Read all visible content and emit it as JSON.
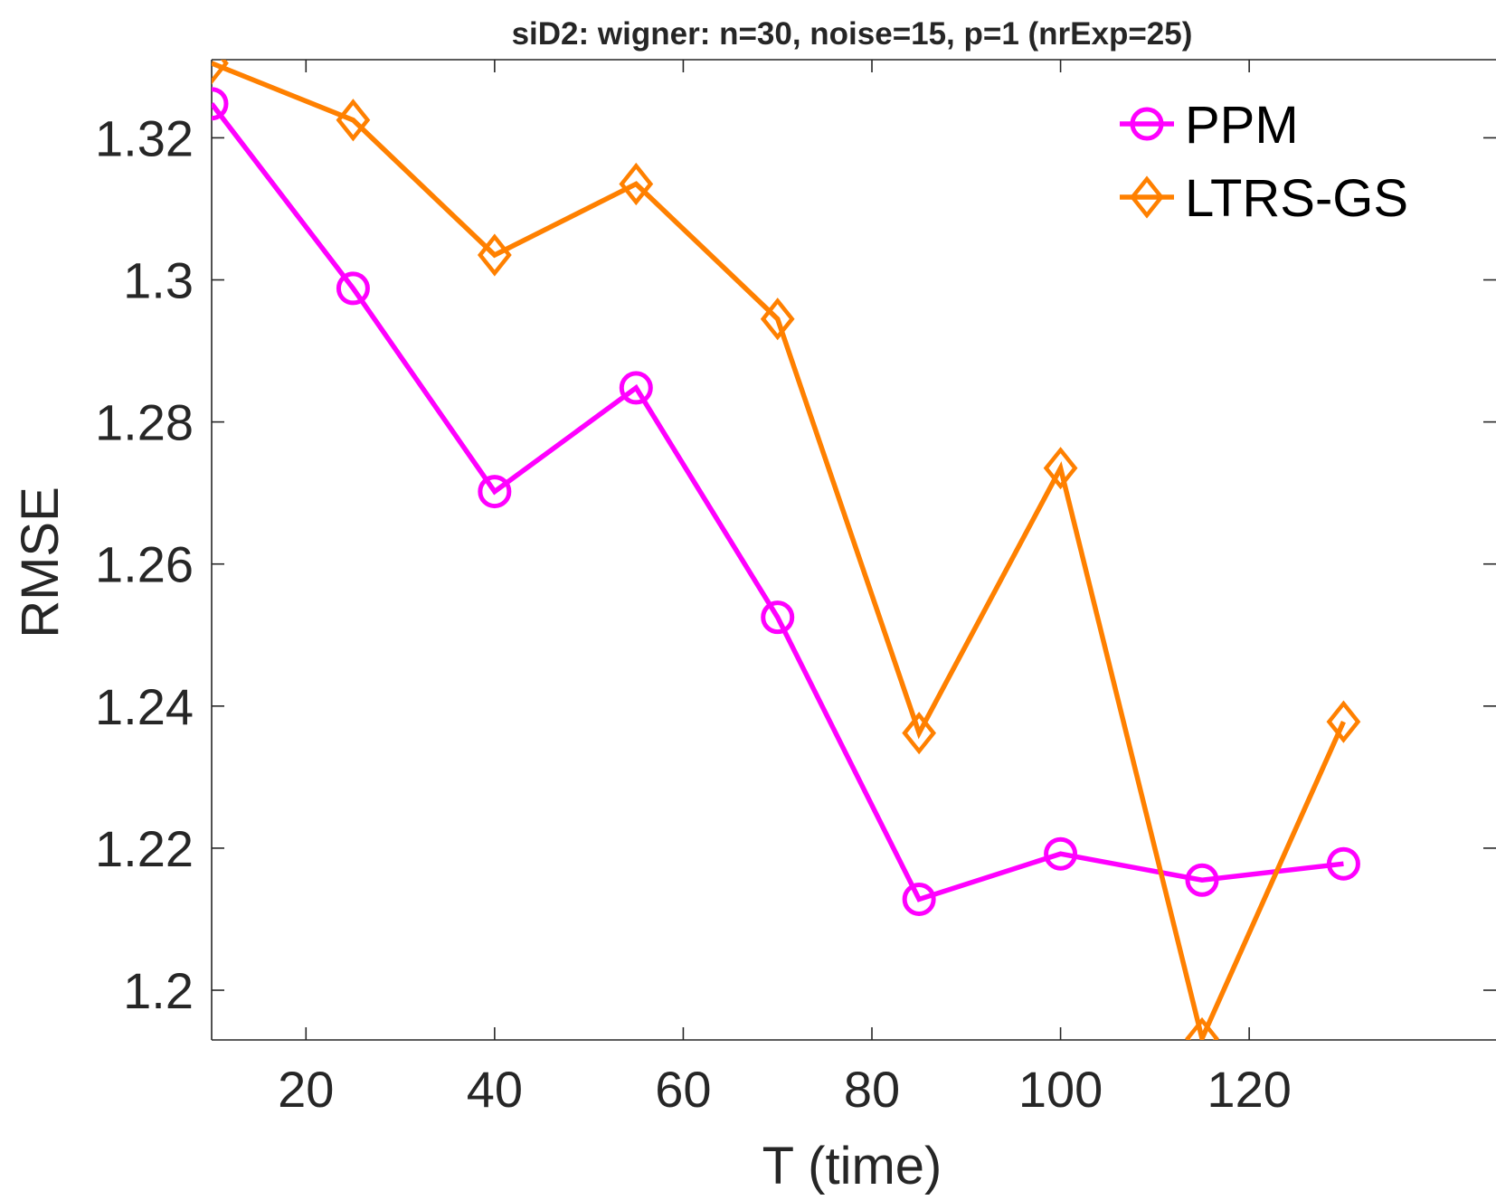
{
  "chart_data": {
    "type": "line",
    "title": "siD2: wigner: n=30, noise=15, p=1 (nrExp=25)",
    "xlabel": "T (time)",
    "ylabel": "RMSE",
    "xlim": [
      10,
      150
    ],
    "ylim": [
      1.193,
      1.331
    ],
    "xticks": [
      20,
      40,
      60,
      80,
      100,
      120
    ],
    "xtick_labels": [
      "20",
      "40",
      "60",
      "80",
      "100",
      "120"
    ],
    "yticks": [
      1.2,
      1.22,
      1.24,
      1.26,
      1.28,
      1.3,
      1.32
    ],
    "ytick_labels": [
      "1.2",
      "1.22",
      "1.24",
      "1.26",
      "1.28",
      "1.3",
      "1.32"
    ],
    "grid": false,
    "legend_position": "top-right",
    "series": [
      {
        "name": "PPM",
        "color": "#FF00FF",
        "marker": "circle",
        "x": [
          10,
          25,
          40,
          55,
          70,
          85,
          100,
          115,
          130
        ],
        "y": [
          1.3248,
          1.2988,
          1.2702,
          1.2848,
          1.2525,
          1.2128,
          1.2192,
          1.2155,
          1.2178
        ]
      },
      {
        "name": "LTRS-GS",
        "color": "#FF8000",
        "marker": "diamond",
        "x": [
          10,
          25,
          40,
          55,
          70,
          85,
          100,
          115,
          130
        ],
        "y": [
          1.3305,
          1.3225,
          1.3035,
          1.3135,
          1.2945,
          1.2362,
          1.2735,
          1.1932,
          1.2378
        ]
      }
    ]
  }
}
